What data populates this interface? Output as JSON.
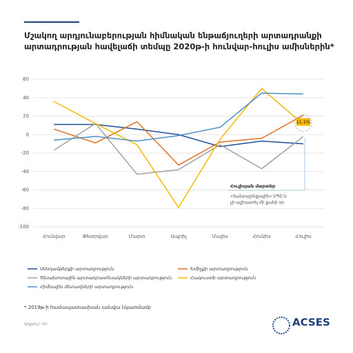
{
  "chart_data": {
    "type": "line",
    "title_lines": [
      "Մշակող արդյունաբերության հիմնական ենթաճյուղերի արտադրանքի",
      "արտադրության հավելաճի տեմպը 2020թ-ի հունվար-հուլիս ամիսներին*"
    ],
    "categories": [
      "Հունվար",
      "Փետրվար",
      "Մարտ",
      "Ապրիլ",
      "Մայիս",
      "Հունիս",
      "Հուլիս"
    ],
    "series": [
      {
        "name": "Սննդամթերքի արտադրություն",
        "color": "#1f4e9a",
        "values": [
          11,
          11,
          6,
          0,
          -13,
          -7,
          -10
        ]
      },
      {
        "name": "Խմիչքի արտադրություն",
        "color": "#e07020",
        "values": [
          6,
          -9,
          14,
          -33,
          -8,
          -4,
          21
        ]
      },
      {
        "name": "Ծխախոտային արտադրատեսակների արտադրություն",
        "color": "#a0a0a0",
        "values": [
          -17,
          12,
          -43,
          -38,
          -11,
          -37,
          -2
        ]
      },
      {
        "name": "Հագուստի արտադրություն",
        "color": "#f5b800",
        "values": [
          36,
          12,
          -11,
          -79,
          -5,
          50,
          11.1
        ],
        "value_labels": [
          null,
          null,
          null,
          null,
          null,
          null,
          "11.1%"
        ]
      },
      {
        "name": "Հիմնային մետաղների արտադրություն",
        "color": "#4a90c8",
        "values": [
          -6,
          -2,
          -7,
          -1,
          8,
          45,
          44
        ]
      }
    ],
    "ylim": [
      -100,
      60
    ],
    "yticks": [
      -100,
      -80,
      -60,
      -40,
      -20,
      0,
      20,
      40,
      60
    ],
    "grid": true,
    "annotation": {
      "title": "Հուլիսյան մարտեր",
      "text": [
        "«Տանրաշենքային» ՍՊԸ-ն",
        "չի աշխատել մի քանի օր"
      ]
    },
    "footnote": "* 2019թ-ի համապատասխան ամսվա նկատմամբ",
    "source": "Աղբյուր՝ ՎԿ",
    "logo": "ACSES"
  }
}
